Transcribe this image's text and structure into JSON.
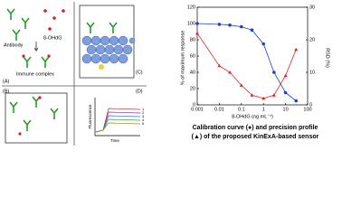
{
  "diagram": {
    "antibody": "Antibody",
    "analyte": "8-OHdG",
    "complex": "Immune complex",
    "panels": [
      "(A)",
      "(B)",
      "(C)",
      "(D)"
    ],
    "d_ylabel": "Fluorescence",
    "d_xlabel": "Time",
    "d_curves": [
      "1",
      "2",
      "3",
      "4",
      "5"
    ]
  },
  "chart_data": {
    "type": "line",
    "xlog": true,
    "xlabel": "8-OHdG (ng mL⁻¹)",
    "ylabel": "% of maximum response",
    "y2label": "RSD (%)",
    "x": [
      0.001,
      0.01,
      0.03,
      0.1,
      0.3,
      1,
      3,
      10,
      30
    ],
    "series": [
      {
        "name": "Calibration curve",
        "color": "#1f3fd1",
        "marker": "circle",
        "values": [
          100,
          99,
          98,
          96,
          92,
          75,
          40,
          15,
          5
        ]
      },
      {
        "name": "Precision profile",
        "color": "#e52020",
        "marker": "triangle",
        "axis": "y2",
        "values": [
          22,
          12,
          10,
          6,
          3,
          2,
          3,
          9,
          17
        ]
      }
    ],
    "xlim": [
      0.001,
      100
    ],
    "xticks": [
      0.001,
      0.01,
      0.1,
      1,
      10,
      100
    ],
    "ylim": [
      0,
      120
    ],
    "yticks": [
      0,
      20,
      40,
      60,
      80,
      100,
      120
    ],
    "y2lim": [
      0,
      30
    ],
    "y2ticks": [
      0,
      10,
      20,
      30
    ],
    "caption": [
      "Calibration curve (●) and precision profile",
      "(▲) of the proposed KinExA-based sensor"
    ]
  }
}
